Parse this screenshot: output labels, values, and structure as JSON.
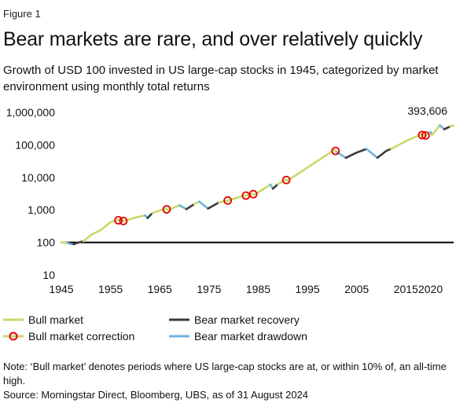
{
  "figure_label": "Figure 1",
  "title": "Bear markets are rare, and over relatively quickly",
  "subtitle": "Growth of USD 100 invested in US large-cap stocks in 1945, categorized by market environment using monthly total returns",
  "note": "Note: ‘Bull market’ denotes periods where US large-cap stocks are at, or within 10% of, an all-time high.",
  "source": "Source: Morningstar Direct, Bloomberg, UBS, as of 31 August 2024",
  "legend": {
    "bull": "Bull market",
    "correction": "Bull market correction",
    "recovery": "Bear market recovery",
    "drawdown": "Bear market drawdown"
  },
  "colors": {
    "bull": "#c8d96a",
    "recovery": "#3a3a3a",
    "drawdown": "#6fb2df",
    "correction": "#e60000",
    "reference": "#000000"
  },
  "chart_data": {
    "type": "line",
    "y_scale": "log",
    "ylim": [
      10,
      1000000
    ],
    "xlim": [
      1945,
      2024.7
    ],
    "y_ticks": [
      {
        "value": 10,
        "label": "10"
      },
      {
        "value": 100,
        "label": "100"
      },
      {
        "value": 1000,
        "label": "1,000"
      },
      {
        "value": 10000,
        "label": "10,000"
      },
      {
        "value": 100000,
        "label": "100,000"
      },
      {
        "value": 1000000,
        "label": "1,000,000"
      }
    ],
    "x_ticks": [
      {
        "value": 1945,
        "label": "1945"
      },
      {
        "value": 1955,
        "label": "1955"
      },
      {
        "value": 1965,
        "label": "1965"
      },
      {
        "value": 1975,
        "label": "1975"
      },
      {
        "value": 1985,
        "label": "1985"
      },
      {
        "value": 1995,
        "label": "1995"
      },
      {
        "value": 2005,
        "label": "2005"
      },
      {
        "value": 2015,
        "label": "2015"
      },
      {
        "value": 2020,
        "label": "2020"
      }
    ],
    "reference_line": 100,
    "end_label": {
      "x": 2024.7,
      "y": 393606,
      "text": "393,606"
    },
    "segments": [
      {
        "regime": "bull",
        "points": [
          [
            1945,
            100
          ],
          [
            1946.3,
            96
          ]
        ]
      },
      {
        "regime": "drawdown",
        "points": [
          [
            1946.3,
            96
          ],
          [
            1946.8,
            90
          ],
          [
            1947.5,
            88
          ]
        ]
      },
      {
        "regime": "recovery",
        "points": [
          [
            1947.5,
            88
          ],
          [
            1948.5,
            100
          ],
          [
            1949.5,
            108
          ]
        ]
      },
      {
        "regime": "bull",
        "points": [
          [
            1949.5,
            108
          ],
          [
            1951,
            170
          ],
          [
            1953,
            240
          ],
          [
            1955,
            420
          ],
          [
            1956.5,
            500
          ]
        ]
      },
      {
        "regime": "correction",
        "points": [
          [
            1956.5,
            500
          ],
          [
            1957.5,
            450
          ],
          [
            1958,
            470
          ]
        ]
      },
      {
        "regime": "bull",
        "points": [
          [
            1958,
            470
          ],
          [
            1960,
            580
          ],
          [
            1962,
            680
          ]
        ]
      },
      {
        "regime": "drawdown",
        "points": [
          [
            1962,
            680
          ],
          [
            1962.5,
            560
          ]
        ]
      },
      {
        "regime": "recovery",
        "points": [
          [
            1962.5,
            560
          ],
          [
            1963.5,
            800
          ]
        ]
      },
      {
        "regime": "bull",
        "points": [
          [
            1963.5,
            800
          ],
          [
            1966,
            1080
          ]
        ]
      },
      {
        "regime": "correction",
        "points": [
          [
            1966,
            1080
          ],
          [
            1966.8,
            1000
          ]
        ]
      },
      {
        "regime": "bull",
        "points": [
          [
            1966.8,
            1000
          ],
          [
            1969,
            1400
          ]
        ]
      },
      {
        "regime": "drawdown",
        "points": [
          [
            1969,
            1400
          ],
          [
            1970.4,
            1050
          ]
        ]
      },
      {
        "regime": "recovery",
        "points": [
          [
            1970.4,
            1050
          ],
          [
            1972,
            1500
          ]
        ]
      },
      {
        "regime": "bull",
        "points": [
          [
            1972,
            1500
          ],
          [
            1973,
            1800
          ]
        ]
      },
      {
        "regime": "drawdown",
        "points": [
          [
            1973,
            1800
          ],
          [
            1974.8,
            1100
          ]
        ]
      },
      {
        "regime": "recovery",
        "points": [
          [
            1974.8,
            1100
          ],
          [
            1977,
            1700
          ]
        ]
      },
      {
        "regime": "bull",
        "points": [
          [
            1977,
            1700
          ],
          [
            1978.5,
            1900
          ]
        ]
      },
      {
        "regime": "correction",
        "points": [
          [
            1978.5,
            1900
          ],
          [
            1979.2,
            2000
          ]
        ]
      },
      {
        "regime": "bull",
        "points": [
          [
            1979.2,
            2000
          ],
          [
            1982,
            2700
          ]
        ]
      },
      {
        "regime": "correction",
        "points": [
          [
            1982,
            2700
          ],
          [
            1983.5,
            3000
          ],
          [
            1984.5,
            3100
          ]
        ]
      },
      {
        "regime": "bull",
        "points": [
          [
            1984.5,
            3100
          ],
          [
            1987.5,
            6000
          ]
        ]
      },
      {
        "regime": "drawdown",
        "points": [
          [
            1987.5,
            6000
          ],
          [
            1988,
            4500
          ]
        ]
      },
      {
        "regime": "recovery",
        "points": [
          [
            1988,
            4500
          ],
          [
            1989,
            6200
          ]
        ]
      },
      {
        "regime": "bull",
        "points": [
          [
            1989,
            6200
          ],
          [
            1990.5,
            8500
          ]
        ]
      },
      {
        "regime": "correction",
        "points": [
          [
            1990.5,
            8500
          ],
          [
            1991,
            8000
          ]
        ]
      },
      {
        "regime": "bull",
        "points": [
          [
            1991,
            8000
          ],
          [
            1995,
            20000
          ],
          [
            1998,
            40000
          ],
          [
            2000.5,
            70000
          ]
        ]
      },
      {
        "regime": "correction",
        "points": [
          [
            2000.5,
            70000
          ],
          [
            2001,
            60000
          ]
        ]
      },
      {
        "regime": "drawdown",
        "points": [
          [
            2001,
            60000
          ],
          [
            2002.8,
            40000
          ]
        ]
      },
      {
        "regime": "recovery",
        "points": [
          [
            2002.8,
            40000
          ],
          [
            2005,
            58000
          ],
          [
            2007,
            75000
          ]
        ]
      },
      {
        "regime": "drawdown",
        "points": [
          [
            2007,
            75000
          ],
          [
            2009.2,
            40000
          ]
        ]
      },
      {
        "regime": "recovery",
        "points": [
          [
            2009.2,
            40000
          ],
          [
            2011,
            65000
          ],
          [
            2012,
            75000
          ]
        ]
      },
      {
        "regime": "bull",
        "points": [
          [
            2012,
            75000
          ],
          [
            2015,
            130000
          ],
          [
            2018,
            210000
          ]
        ]
      },
      {
        "regime": "correction",
        "points": [
          [
            2018,
            210000
          ],
          [
            2018.9,
            190000
          ],
          [
            2019.5,
            220000
          ]
        ]
      },
      {
        "regime": "bull",
        "points": [
          [
            2019.5,
            220000
          ],
          [
            2020,
            250000
          ]
        ]
      },
      {
        "regime": "drawdown",
        "points": [
          [
            2020,
            250000
          ],
          [
            2020.3,
            200000
          ]
        ]
      },
      {
        "regime": "bull",
        "points": [
          [
            2020.3,
            200000
          ],
          [
            2021.9,
            400000
          ]
        ]
      },
      {
        "regime": "drawdown",
        "points": [
          [
            2021.9,
            400000
          ],
          [
            2022.8,
            300000
          ]
        ]
      },
      {
        "regime": "recovery",
        "points": [
          [
            2022.8,
            300000
          ],
          [
            2024,
            370000
          ]
        ]
      },
      {
        "regime": "bull",
        "points": [
          [
            2024,
            370000
          ],
          [
            2024.7,
            393606
          ]
        ]
      }
    ],
    "correction_markers": [
      [
        1956.6,
        480
      ],
      [
        1957.6,
        455
      ],
      [
        1966.4,
        1040
      ],
      [
        1978.8,
        1950
      ],
      [
        1982.5,
        2750
      ],
      [
        1984,
        3050
      ],
      [
        1990.7,
        8300
      ],
      [
        2000.7,
        65000
      ],
      [
        2018.3,
        200000
      ],
      [
        2019,
        195000
      ]
    ]
  }
}
